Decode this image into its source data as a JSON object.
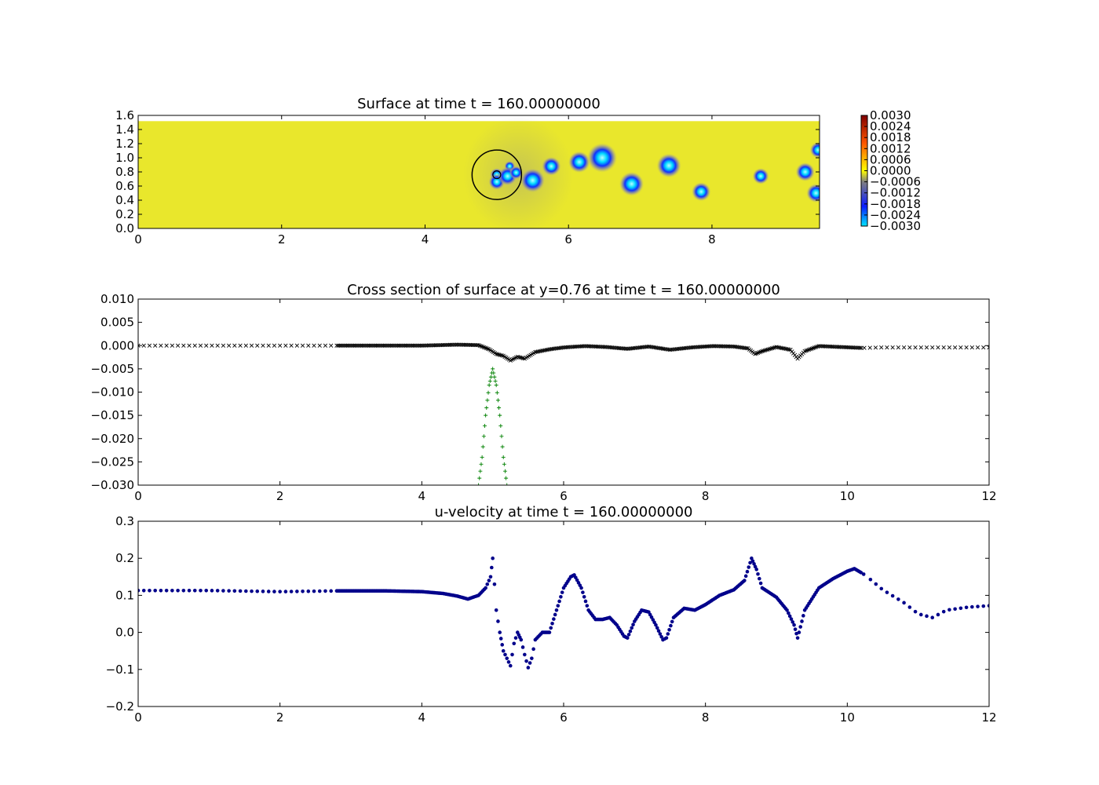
{
  "chart_data": [
    {
      "type": "heatmap",
      "title": "Surface at time t =   160.00000000",
      "xlim": [
        0,
        9.5
      ],
      "ylim": [
        0,
        1.6
      ],
      "xticks": [
        "0",
        "2",
        "4",
        "6",
        "8"
      ],
      "yticks": [
        "0.0",
        "0.2",
        "0.4",
        "0.6",
        "0.8",
        "1.0",
        "1.2",
        "1.4",
        "1.6"
      ],
      "domain_top": 1.52,
      "colorbar": {
        "ticks": [
          "0.0030",
          "0.0024",
          "0.0018",
          "0.0012",
          "0.0006",
          "0.0000",
          "−0.0006",
          "−0.0012",
          "−0.0018",
          "−0.0024",
          "−0.0030"
        ],
        "range": [
          -0.003,
          0.003
        ],
        "colors": [
          "#00e5ff",
          "#0a1cff",
          "#808080",
          "#ffff00",
          "#ff5500",
          "#800000"
        ]
      },
      "background_color": "#e9e72c",
      "cylinder": {
        "x": 5.0,
        "y": 0.76,
        "r": 0.35
      },
      "vortices": [
        {
          "x": 5.0,
          "y": 0.76,
          "r": 0.05
        },
        {
          "x": 5.0,
          "y": 0.66,
          "r": 0.06
        },
        {
          "x": 5.18,
          "y": 0.88,
          "r": 0.04
        },
        {
          "x": 5.15,
          "y": 0.74,
          "r": 0.07
        },
        {
          "x": 5.27,
          "y": 0.79,
          "r": 0.05
        },
        {
          "x": 5.5,
          "y": 0.68,
          "r": 0.09
        },
        {
          "x": 5.76,
          "y": 0.88,
          "r": 0.07
        },
        {
          "x": 6.15,
          "y": 0.94,
          "r": 0.08
        },
        {
          "x": 6.47,
          "y": 1.0,
          "r": 0.11
        },
        {
          "x": 6.88,
          "y": 0.63,
          "r": 0.09
        },
        {
          "x": 7.4,
          "y": 0.89,
          "r": 0.09
        },
        {
          "x": 7.85,
          "y": 0.52,
          "r": 0.07
        },
        {
          "x": 8.68,
          "y": 0.74,
          "r": 0.06
        },
        {
          "x": 9.3,
          "y": 0.8,
          "r": 0.07
        },
        {
          "x": 9.45,
          "y": 0.5,
          "r": 0.07
        },
        {
          "x": 9.48,
          "y": 1.11,
          "r": 0.06
        }
      ]
    },
    {
      "type": "scatter",
      "title": "Cross section of surface at y=0.76 at time t =   160.00000000",
      "xlim": [
        0,
        12
      ],
      "ylim": [
        -0.03,
        0.01
      ],
      "xticks": [
        "0",
        "2",
        "4",
        "6",
        "8",
        "10",
        "12"
      ],
      "yticks": [
        "0.010",
        "0.005",
        "0.000",
        "−0.005",
        "−0.010",
        "−0.015",
        "−0.020",
        "−0.025",
        "−0.030"
      ],
      "series": [
        {
          "marker": "x",
          "color": "#000000",
          "x": [
            0.0,
            0.5,
            1.0,
            1.5,
            2.0,
            2.5,
            2.8,
            3.5,
            4.0,
            4.5,
            4.8,
            4.95,
            5.05,
            5.15,
            5.25,
            5.35,
            5.45,
            5.6,
            5.8,
            6.0,
            6.3,
            6.6,
            6.9,
            7.2,
            7.5,
            7.8,
            8.1,
            8.4,
            8.6,
            8.7,
            8.8,
            9.0,
            9.2,
            9.3,
            9.4,
            9.6,
            9.9,
            10.2,
            10.5,
            11.0,
            11.5,
            12.0
          ],
          "y": [
            0.0,
            0.0,
            0.0,
            0.0,
            0.0,
            0.0,
            0.0,
            0.0,
            0.0,
            0.0002,
            0.0001,
            -0.0008,
            -0.0018,
            -0.0022,
            -0.0032,
            -0.0024,
            -0.0028,
            -0.0014,
            -0.0008,
            -0.0004,
            -0.0001,
            -0.0003,
            -0.0007,
            -0.0002,
            -0.0009,
            -0.0004,
            -0.0001,
            -0.0002,
            -0.0006,
            -0.0018,
            -0.0012,
            -0.0003,
            -0.0009,
            -0.0028,
            -0.0012,
            -0.0001,
            -0.0003,
            -0.0005,
            -0.0004,
            -0.0004,
            -0.0004,
            -0.0004
          ]
        },
        {
          "marker": "+",
          "color": "#008000",
          "x": [
            4.8,
            4.85,
            4.9,
            4.95,
            5.0,
            5.05,
            5.1,
            5.15,
            5.2
          ],
          "y": [
            -0.03,
            -0.024,
            -0.015,
            -0.0085,
            -0.005,
            -0.0085,
            -0.015,
            -0.024,
            -0.03
          ]
        }
      ]
    },
    {
      "type": "scatter",
      "title": "u-velocity at time t =   160.00000000",
      "xlim": [
        0,
        12
      ],
      "ylim": [
        -0.2,
        0.3
      ],
      "xticks": [
        "0",
        "2",
        "4",
        "6",
        "8",
        "10",
        "12"
      ],
      "yticks": [
        "0.3",
        "0.2",
        "0.1",
        "0.0",
        "−0.1",
        "−0.2"
      ],
      "series": [
        {
          "marker": "o",
          "color": "#00008b",
          "x": [
            0.0,
            1.0,
            2.0,
            2.8,
            3.5,
            4.0,
            4.3,
            4.5,
            4.65,
            4.8,
            4.9,
            4.97,
            5.0,
            5.05,
            5.1,
            5.15,
            5.2,
            5.25,
            5.3,
            5.35,
            5.4,
            5.45,
            5.5,
            5.55,
            5.6,
            5.7,
            5.8,
            5.9,
            6.0,
            6.1,
            6.15,
            6.25,
            6.35,
            6.45,
            6.55,
            6.65,
            6.75,
            6.85,
            6.9,
            7.0,
            7.1,
            7.2,
            7.3,
            7.4,
            7.45,
            7.55,
            7.7,
            7.85,
            8.0,
            8.2,
            8.4,
            8.55,
            8.65,
            8.72,
            8.8,
            9.0,
            9.15,
            9.25,
            9.3,
            9.4,
            9.6,
            9.8,
            10.0,
            10.1,
            10.25,
            10.5,
            10.8,
            11.0,
            11.2,
            11.4,
            11.7,
            12.0
          ],
          "y": [
            0.113,
            0.113,
            0.11,
            0.112,
            0.112,
            0.11,
            0.105,
            0.098,
            0.09,
            0.1,
            0.12,
            0.15,
            0.2,
            0.06,
            0.0,
            -0.05,
            -0.07,
            -0.09,
            -0.03,
            0.0,
            -0.02,
            -0.06,
            -0.095,
            -0.07,
            -0.02,
            0.0,
            0.0,
            0.06,
            0.12,
            0.15,
            0.155,
            0.12,
            0.06,
            0.035,
            0.035,
            0.04,
            0.02,
            -0.01,
            -0.015,
            0.03,
            0.06,
            0.055,
            0.02,
            -0.02,
            -0.015,
            0.04,
            0.065,
            0.06,
            0.075,
            0.1,
            0.115,
            0.14,
            0.2,
            0.17,
            0.12,
            0.095,
            0.06,
            0.02,
            -0.015,
            0.06,
            0.12,
            0.145,
            0.165,
            0.172,
            0.155,
            0.115,
            0.08,
            0.05,
            0.04,
            0.06,
            0.068,
            0.072
          ]
        }
      ]
    }
  ]
}
